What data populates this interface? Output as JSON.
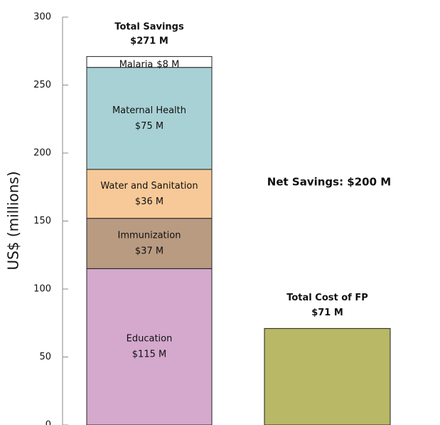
{
  "chart_data": {
    "type": "stacked_bar",
    "y_label": "US$ (millions)",
    "categories": [
      null,
      null
    ],
    "series": [
      {
        "name": "Education",
        "color": "#d4a9cd",
        "values": [
          115,
          null
        ],
        "value_labels": [
          "$115 M",
          null
        ]
      },
      {
        "name": "Immunization",
        "color": "#b99b82",
        "values": [
          37,
          null
        ],
        "value_labels": [
          "$37 M",
          null
        ]
      },
      {
        "name": "Water and Sanitation",
        "color": "#f8c998",
        "values": [
          36,
          null
        ],
        "value_labels": [
          "$36 M",
          null
        ]
      },
      {
        "name": "Maternal Health",
        "color": "#a8d1d5",
        "values": [
          75,
          null
        ],
        "value_labels": [
          "$75 M",
          null
        ]
      },
      {
        "name": "Malaria",
        "color": "#ffffff",
        "values": [
          8,
          null
        ],
        "value_labels": [
          "$8 M",
          null
        ]
      },
      {
        "name": "Total Cost of FP",
        "color": "#b8b866",
        "values": [
          null,
          71
        ],
        "value_labels": [
          null,
          "$71 M"
        ]
      }
    ],
    "annotations": [
      {
        "text": "Total Savings",
        "value": "$271 M"
      },
      {
        "text": "Net Savings: $200 M"
      }
    ],
    "ylim": [
      0,
      300
    ],
    "yticks": [
      0,
      50,
      100,
      150,
      200,
      250,
      300
    ],
    "grid": false
  }
}
